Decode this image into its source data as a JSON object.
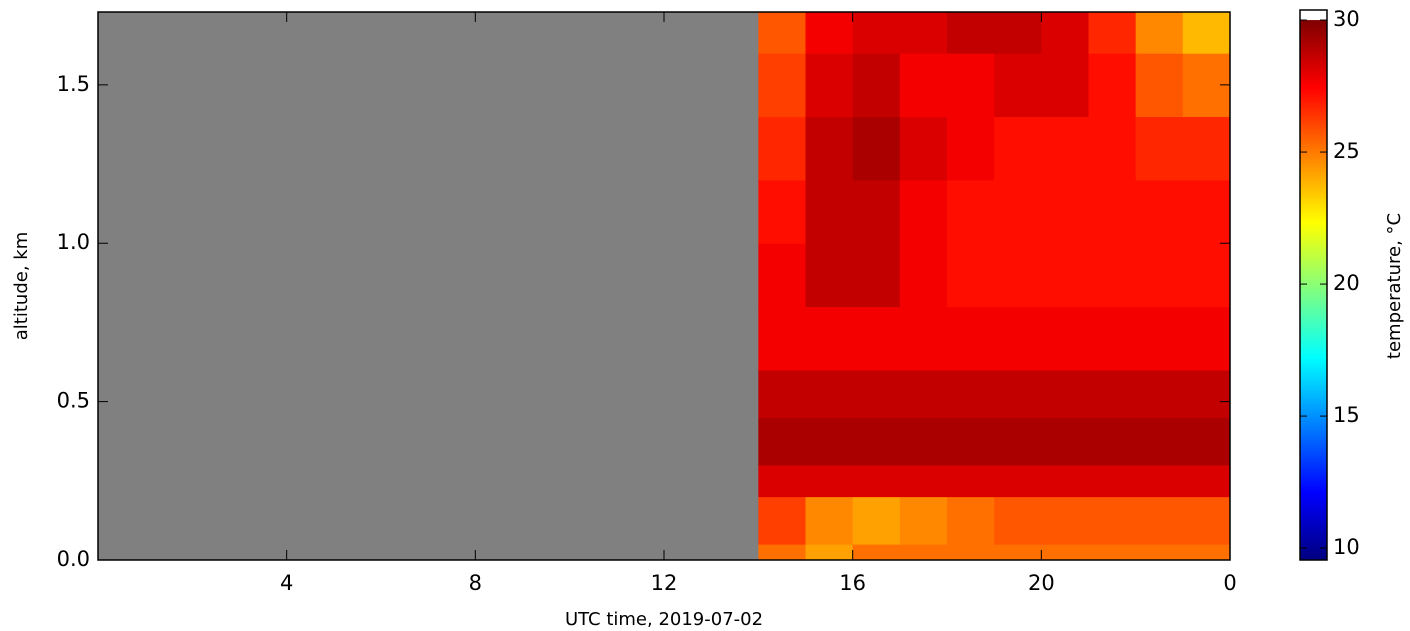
{
  "chart_data": {
    "type": "heatmap",
    "xlabel": "UTC time,  2019-07-02",
    "ylabel": "altitude, km",
    "colorbar_label": "temperature, °C",
    "x_edges": [
      0,
      1,
      2,
      3,
      4,
      5,
      6,
      7,
      8,
      9,
      10,
      11,
      12,
      13,
      14,
      15,
      16,
      17,
      18,
      19,
      20,
      21,
      22,
      23,
      24
    ],
    "y_edges": [
      0,
      0.05,
      0.2,
      0.3,
      0.45,
      0.6,
      0.8,
      1.0,
      1.2,
      1.4,
      1.6,
      1.73
    ],
    "z": [
      [
        null,
        null,
        null,
        null,
        null,
        null,
        null,
        null,
        null,
        null,
        null,
        null,
        null,
        null,
        25.5,
        24.5,
        25.5,
        25.5,
        25.5,
        25.5,
        25.5,
        25.5,
        25.5,
        25.5
      ],
      [
        null,
        null,
        null,
        null,
        null,
        null,
        null,
        null,
        null,
        null,
        null,
        null,
        null,
        null,
        26.5,
        25,
        24.5,
        25,
        25.5,
        26,
        26,
        26,
        26,
        26
      ],
      [
        null,
        null,
        null,
        null,
        null,
        null,
        null,
        null,
        null,
        null,
        null,
        null,
        null,
        null,
        28.5,
        28.5,
        28.5,
        28.5,
        28.5,
        28.5,
        28.5,
        28.5,
        28.5,
        28.5
      ],
      [
        null,
        null,
        null,
        null,
        null,
        null,
        null,
        null,
        null,
        null,
        null,
        null,
        null,
        null,
        29.5,
        29.5,
        29.5,
        29.5,
        29.5,
        29.5,
        29.5,
        29.5,
        29.5,
        29.5
      ],
      [
        null,
        null,
        null,
        null,
        null,
        null,
        null,
        null,
        null,
        null,
        null,
        null,
        null,
        null,
        29,
        29,
        29,
        29,
        29,
        29,
        29,
        29,
        29,
        29
      ],
      [
        null,
        null,
        null,
        null,
        null,
        null,
        null,
        null,
        null,
        null,
        null,
        null,
        null,
        null,
        28,
        28,
        28,
        28,
        28,
        28,
        28,
        28,
        28,
        28
      ],
      [
        null,
        null,
        null,
        null,
        null,
        null,
        null,
        null,
        null,
        null,
        null,
        null,
        null,
        null,
        28,
        29,
        29,
        28,
        27.5,
        27.5,
        27.5,
        27.5,
        27.5,
        27.5
      ],
      [
        null,
        null,
        null,
        null,
        null,
        null,
        null,
        null,
        null,
        null,
        null,
        null,
        null,
        null,
        27.5,
        29,
        29,
        28,
        27.5,
        27.5,
        27.5,
        27.5,
        27.5,
        27.5
      ],
      [
        null,
        null,
        null,
        null,
        null,
        null,
        null,
        null,
        null,
        null,
        null,
        null,
        null,
        null,
        27,
        29,
        29.5,
        28.5,
        28,
        27.5,
        27.5,
        27.5,
        27,
        27
      ],
      [
        null,
        null,
        null,
        null,
        null,
        null,
        null,
        null,
        null,
        null,
        null,
        null,
        null,
        null,
        26.5,
        28.5,
        29,
        28,
        28,
        28.5,
        28.5,
        27.5,
        26,
        25.5
      ],
      [
        null,
        null,
        null,
        null,
        null,
        null,
        null,
        null,
        null,
        null,
        null,
        null,
        null,
        null,
        26,
        28,
        28.5,
        28.5,
        29,
        29,
        28.5,
        27,
        25,
        24
      ]
    ],
    "colors": [
      "#00007f",
      "#0000ff",
      "#0080ff",
      "#00ffff",
      "#80ff80",
      "#ffff00",
      "#ff8000",
      "#ff0000",
      "#7f0000"
    ],
    "missing_color": "#808080",
    "over_color": "#ffffff",
    "xlim": [
      0,
      24
    ],
    "xticks": [
      4,
      8,
      12,
      16,
      20,
      {
        "value": 24,
        "label": "0"
      }
    ],
    "ylim": [
      0,
      1.73
    ],
    "yticks": [
      {
        "value": 0,
        "label": "0.0"
      },
      0.5,
      {
        "value": 1,
        "label": "1.0"
      },
      1.5
    ],
    "clim": [
      9.55,
      30.38
    ],
    "cticks": [
      10,
      15,
      20,
      25,
      30
    ]
  }
}
